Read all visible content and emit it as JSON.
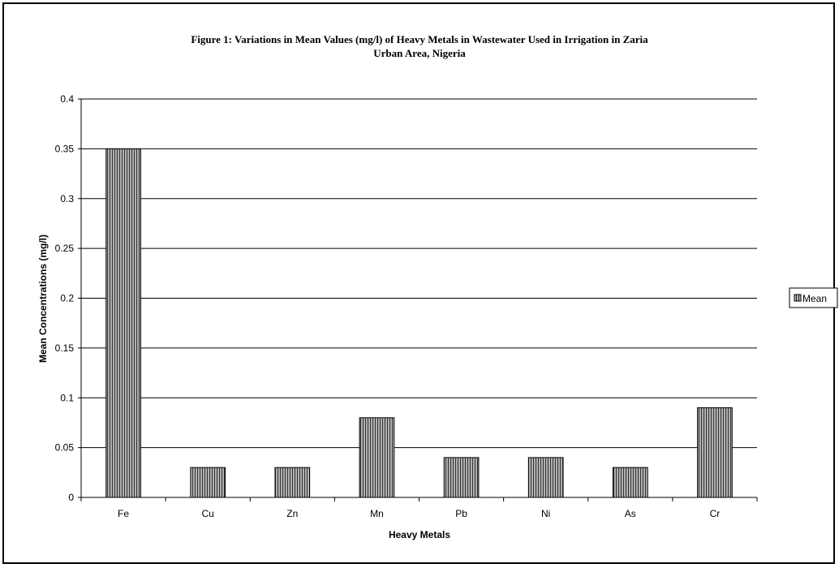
{
  "chart_data": {
    "type": "bar",
    "title_line1": "Figure 1: Variations in Mean Values (mg/l) of Heavy Metals in Wastewater Used in Irrigation in Zaria",
    "title_line2": "Urban Area, Nigeria",
    "xlabel": "Heavy Metals",
    "ylabel": "Mean Concentrations (mg/l)",
    "categories": [
      "Fe",
      "Cu",
      "Zn",
      "Mn",
      "Pb",
      "Ni",
      "As",
      "Cr"
    ],
    "series": [
      {
        "name": "Mean",
        "values": [
          0.35,
          0.03,
          0.03,
          0.08,
          0.04,
          0.04,
          0.03,
          0.09
        ]
      }
    ],
    "ylim": [
      0,
      0.4
    ],
    "yticks": [
      "0",
      "0.05",
      "0.1",
      "0.15",
      "0.2",
      "0.25",
      "0.3",
      "0.35",
      "0.4"
    ],
    "grid": "horizontal",
    "legend_position": "right",
    "bar_fill": "vertical-stripes",
    "colors": {
      "bar_fill": "#b0b0b0",
      "bar_stripe": "#333333",
      "gridline": "#000000"
    }
  }
}
